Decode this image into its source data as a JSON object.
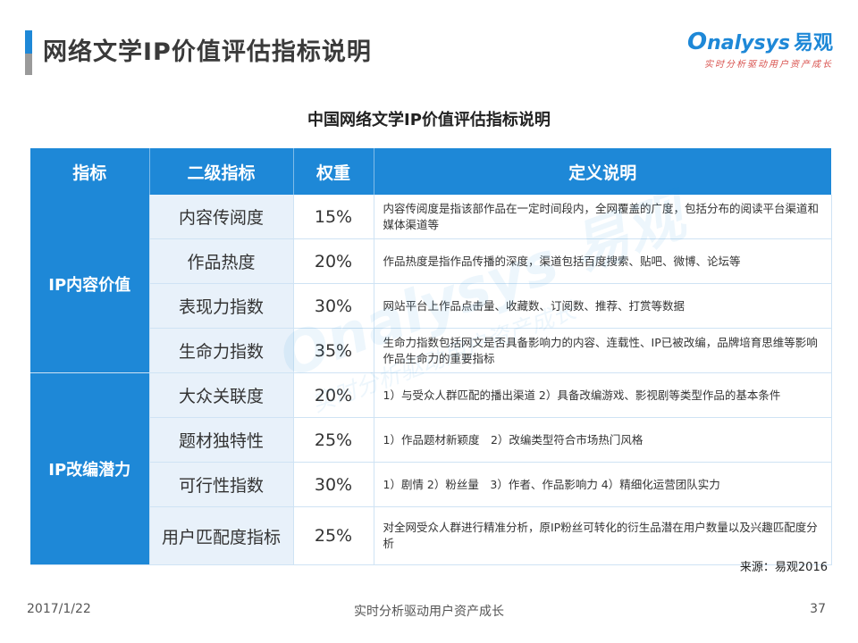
{
  "header": {
    "title": "网络文学IP价值评估指标说明",
    "accent_color": "#1e88d7"
  },
  "logo": {
    "brand_prefix": "O",
    "brand_rest": "nalysys",
    "brand_cn": "易观",
    "tagline": "实时分析驱动用户资产成长"
  },
  "watermark": {
    "text": "Onalysys 易观",
    "sub": "实时分析驱动用户资产成长"
  },
  "table": {
    "title": "中国网络文学IP价值评估指标说明",
    "headers": [
      "指标",
      "二级指标",
      "权重",
      "定义说明"
    ],
    "groups": [
      {
        "category": "IP内容价值",
        "rows": [
          {
            "sub": "内容传阅度",
            "weight": "15%",
            "definition": "内容传阅度是指该部作品在一定时间段内，全网覆盖的广度，包括分布的阅读平台渠道和媒体渠道等"
          },
          {
            "sub": "作品热度",
            "weight": "20%",
            "definition": "作品热度是指作品传播的深度，渠道包括百度搜索、贴吧、微博、论坛等"
          },
          {
            "sub": "表现力指数",
            "weight": "30%",
            "definition": "网站平台上作品点击量、收藏数、订阅数、推荐、打赏等数据"
          },
          {
            "sub": "生命力指数",
            "weight": "35%",
            "definition": "生命力指数包括网文是否具备影响力的内容、连载性、IP已被改编，品牌培育思维等影响作品生命力的重要指标"
          }
        ]
      },
      {
        "category": "IP改编潜力",
        "rows": [
          {
            "sub": "大众关联度",
            "weight": "20%",
            "definition": "1）与受众人群匹配的播出渠道 2）具备改编游戏、影视剧等类型作品的基本条件"
          },
          {
            "sub": "题材独特性",
            "weight": "25%",
            "definition": "1）作品题材新颖度　2）改编类型符合市场热门风格"
          },
          {
            "sub": "可行性指数",
            "weight": "30%",
            "definition": "1）剧情 2）粉丝量　3）作者、作品影响力 4）精细化运营团队实力"
          },
          {
            "sub": "用户匹配度指标",
            "weight": "25%",
            "definition": "对全网受众人群进行精准分析，原IP粉丝可转化的衍生品潜在用户数量以及兴趣匹配度分析"
          }
        ]
      }
    ]
  },
  "source": "来源：易观2016",
  "footer": {
    "date": "2017/1/22",
    "tagline": "实时分析驱动用户资产成长",
    "page_number": "37"
  }
}
